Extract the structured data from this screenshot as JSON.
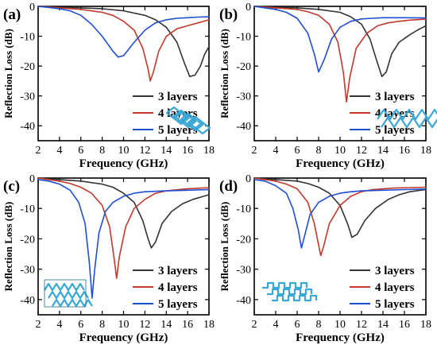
{
  "chart_data": [
    {
      "type": "line",
      "panel_label": "(a)",
      "xlabel": "Frequency (GHz)",
      "ylabel": "Reflection Loss (dB)",
      "xlim": [
        2,
        18
      ],
      "ylim": [
        -45,
        0
      ],
      "xticks": [
        2,
        4,
        6,
        8,
        10,
        12,
        14,
        16,
        18
      ],
      "yticks": [
        0,
        -10,
        -20,
        -30,
        -40
      ],
      "legend_position": "bottom-right",
      "series": [
        {
          "name": "3 layers",
          "color": "#333333",
          "points": [
            [
              2,
              0
            ],
            [
              4,
              -0.3
            ],
            [
              6,
              -0.5
            ],
            [
              8,
              -0.8
            ],
            [
              10,
              -1.5
            ],
            [
              12,
              -3
            ],
            [
              13,
              -4.5
            ],
            [
              14,
              -7
            ],
            [
              15,
              -12
            ],
            [
              15.7,
              -19
            ],
            [
              16.2,
              -23.5
            ],
            [
              16.7,
              -23
            ],
            [
              17.2,
              -20
            ],
            [
              17.6,
              -16
            ],
            [
              18,
              -13.5
            ]
          ]
        },
        {
          "name": "4 layers",
          "color": "#c0392b",
          "points": [
            [
              2,
              0
            ],
            [
              4,
              -0.5
            ],
            [
              6,
              -1
            ],
            [
              8,
              -2
            ],
            [
              9,
              -3
            ],
            [
              10,
              -5
            ],
            [
              11,
              -8
            ],
            [
              11.8,
              -14
            ],
            [
              12.3,
              -21
            ],
            [
              12.5,
              -25
            ],
            [
              12.8,
              -22
            ],
            [
              13.3,
              -15
            ],
            [
              14,
              -10
            ],
            [
              15,
              -7.5
            ],
            [
              16,
              -6.5
            ],
            [
              17,
              -5.5
            ],
            [
              18,
              -4.5
            ]
          ]
        },
        {
          "name": "5 layers",
          "color": "#1f4fd1",
          "points": [
            [
              2,
              0
            ],
            [
              4,
              -0.8
            ],
            [
              5,
              -1.5
            ],
            [
              6,
              -3
            ],
            [
              7,
              -6
            ],
            [
              8,
              -10
            ],
            [
              9,
              -15
            ],
            [
              9.5,
              -17
            ],
            [
              10,
              -16.5
            ],
            [
              11,
              -12
            ],
            [
              12,
              -8
            ],
            [
              13,
              -5.5
            ],
            [
              14,
              -4.5
            ],
            [
              15,
              -4
            ],
            [
              16,
              -3.8
            ],
            [
              17,
              -3.6
            ],
            [
              18,
              -3.5
            ]
          ]
        }
      ]
    },
    {
      "type": "line",
      "panel_label": "(b)",
      "xlabel": "Frequency (GHz)",
      "ylabel": "Reflection Loss (dB)",
      "xlim": [
        2,
        18
      ],
      "ylim": [
        -45,
        0
      ],
      "xticks": [
        2,
        4,
        6,
        8,
        10,
        12,
        14,
        16,
        18
      ],
      "yticks": [
        0,
        -10,
        -20,
        -30,
        -40
      ],
      "legend_position": "bottom-right",
      "series": [
        {
          "name": "3 layers",
          "color": "#333333",
          "points": [
            [
              2,
              0
            ],
            [
              4,
              -0.3
            ],
            [
              6,
              -0.5
            ],
            [
              8,
              -1
            ],
            [
              10,
              -2
            ],
            [
              11,
              -3.5
            ],
            [
              12,
              -6
            ],
            [
              12.8,
              -11
            ],
            [
              13.4,
              -18
            ],
            [
              13.9,
              -23.5
            ],
            [
              14.3,
              -22
            ],
            [
              14.8,
              -16
            ],
            [
              15.5,
              -12
            ],
            [
              16.5,
              -9.5
            ],
            [
              17.2,
              -8
            ],
            [
              18,
              -6.5
            ]
          ]
        },
        {
          "name": "4 layers",
          "color": "#c0392b",
          "points": [
            [
              2,
              0
            ],
            [
              4,
              -0.5
            ],
            [
              6,
              -1
            ],
            [
              7,
              -1.8
            ],
            [
              8,
              -3
            ],
            [
              9,
              -6
            ],
            [
              9.8,
              -12
            ],
            [
              10.3,
              -22
            ],
            [
              10.6,
              -32
            ],
            [
              10.9,
              -24
            ],
            [
              11.5,
              -14
            ],
            [
              12.5,
              -9
            ],
            [
              13.5,
              -6.5
            ],
            [
              14.5,
              -5.5
            ],
            [
              15.5,
              -5
            ],
            [
              16.5,
              -4.6
            ],
            [
              18,
              -4.3
            ]
          ]
        },
        {
          "name": "5 layers",
          "color": "#1f4fd1",
          "points": [
            [
              2,
              0
            ],
            [
              3,
              -0.5
            ],
            [
              4,
              -1
            ],
            [
              5,
              -2
            ],
            [
              6,
              -4
            ],
            [
              7,
              -9
            ],
            [
              7.6,
              -16
            ],
            [
              8,
              -22
            ],
            [
              8.5,
              -18
            ],
            [
              9.2,
              -11
            ],
            [
              10,
              -7
            ],
            [
              11,
              -5
            ],
            [
              12,
              -4.2
            ],
            [
              13,
              -4
            ],
            [
              14,
              -3.8
            ],
            [
              16,
              -3.8
            ],
            [
              18,
              -3.9
            ]
          ]
        }
      ]
    },
    {
      "type": "line",
      "panel_label": "(c)",
      "xlabel": "Frequency (GHz)",
      "ylabel": "Reflection Loss (dB)",
      "xlim": [
        2,
        18
      ],
      "ylim": [
        -45,
        0
      ],
      "xticks": [
        2,
        4,
        6,
        8,
        10,
        12,
        14,
        16,
        18
      ],
      "yticks": [
        0,
        -10,
        -20,
        -30,
        -40
      ],
      "legend_position": "bottom-right",
      "series": [
        {
          "name": "3 layers",
          "color": "#333333",
          "points": [
            [
              2,
              0
            ],
            [
              4,
              -0.5
            ],
            [
              6,
              -1
            ],
            [
              8,
              -2
            ],
            [
              9,
              -3
            ],
            [
              10,
              -5
            ],
            [
              11,
              -8
            ],
            [
              11.8,
              -14
            ],
            [
              12.3,
              -20
            ],
            [
              12.6,
              -23
            ],
            [
              13,
              -21
            ],
            [
              13.6,
              -15
            ],
            [
              14.5,
              -11
            ],
            [
              15.5,
              -8.5
            ],
            [
              16.5,
              -7
            ],
            [
              17.5,
              -6
            ],
            [
              18,
              -5.5
            ]
          ]
        },
        {
          "name": "4 layers",
          "color": "#c0392b",
          "points": [
            [
              2,
              0
            ],
            [
              3,
              -0.5
            ],
            [
              4,
              -1
            ],
            [
              5,
              -1.8
            ],
            [
              6,
              -3
            ],
            [
              7,
              -5
            ],
            [
              8,
              -9
            ],
            [
              8.7,
              -16
            ],
            [
              9.1,
              -26
            ],
            [
              9.35,
              -33
            ],
            [
              9.6,
              -26
            ],
            [
              10.2,
              -16
            ],
            [
              11,
              -10
            ],
            [
              12,
              -7
            ],
            [
              13,
              -5
            ],
            [
              14,
              -4.2
            ],
            [
              16,
              -3.5
            ],
            [
              18,
              -3.2
            ]
          ]
        },
        {
          "name": "5 layers",
          "color": "#1f4fd1",
          "points": [
            [
              2,
              -0.5
            ],
            [
              3,
              -1
            ],
            [
              4,
              -2
            ],
            [
              5,
              -4
            ],
            [
              5.8,
              -8
            ],
            [
              6.4,
              -15
            ],
            [
              6.8,
              -28
            ],
            [
              7.05,
              -39.5
            ],
            [
              7.3,
              -30
            ],
            [
              7.7,
              -18
            ],
            [
              8.3,
              -11
            ],
            [
              9,
              -8
            ],
            [
              10,
              -6
            ],
            [
              11,
              -5
            ],
            [
              12,
              -4.5
            ],
            [
              14,
              -4.2
            ],
            [
              16,
              -4
            ],
            [
              18,
              -3.8
            ]
          ]
        }
      ]
    },
    {
      "type": "line",
      "panel_label": "(d)",
      "xlabel": "Frequency (GHz)",
      "ylabel": "Reflection Loss (dB)",
      "xlim": [
        2,
        18
      ],
      "ylim": [
        -45,
        0
      ],
      "xticks": [
        2,
        4,
        6,
        8,
        10,
        12,
        14,
        16,
        18
      ],
      "yticks": [
        0,
        -10,
        -20,
        -30,
        -40
      ],
      "legend_position": "bottom-right",
      "series": [
        {
          "name": "3 layers",
          "color": "#333333",
          "points": [
            [
              2,
              0
            ],
            [
              4,
              -0.5
            ],
            [
              6,
              -1
            ],
            [
              7,
              -1.8
            ],
            [
              8,
              -3
            ],
            [
              9,
              -5
            ],
            [
              10,
              -9
            ],
            [
              10.7,
              -15
            ],
            [
              11.1,
              -19.5
            ],
            [
              11.6,
              -18.5
            ],
            [
              12.3,
              -14
            ],
            [
              13.3,
              -10
            ],
            [
              14.5,
              -7
            ],
            [
              15.5,
              -5.5
            ],
            [
              16.5,
              -4.5
            ],
            [
              17.5,
              -4
            ],
            [
              18,
              -3.8
            ]
          ]
        },
        {
          "name": "4 layers",
          "color": "#c0392b",
          "points": [
            [
              2,
              0
            ],
            [
              3,
              -0.5
            ],
            [
              4,
              -1
            ],
            [
              5,
              -2
            ],
            [
              6,
              -3.5
            ],
            [
              7,
              -8
            ],
            [
              7.6,
              -15
            ],
            [
              8,
              -22
            ],
            [
              8.2,
              -25.5
            ],
            [
              8.5,
              -22
            ],
            [
              9,
              -15
            ],
            [
              10,
              -9
            ],
            [
              11,
              -6
            ],
            [
              12,
              -4.5
            ],
            [
              13,
              -3.8
            ],
            [
              15,
              -3.3
            ],
            [
              18,
              -3
            ]
          ]
        },
        {
          "name": "5 layers",
          "color": "#1f4fd1",
          "points": [
            [
              2,
              -0.5
            ],
            [
              3,
              -1
            ],
            [
              4,
              -2.5
            ],
            [
              5,
              -5
            ],
            [
              5.6,
              -10
            ],
            [
              6.1,
              -17
            ],
            [
              6.4,
              -23
            ],
            [
              6.7,
              -19
            ],
            [
              7.2,
              -12
            ],
            [
              8,
              -8
            ],
            [
              9,
              -6
            ],
            [
              10,
              -5
            ],
            [
              11,
              -4.5
            ],
            [
              12,
              -4.2
            ],
            [
              14,
              -4
            ],
            [
              16,
              -3.8
            ],
            [
              18,
              -3.6
            ]
          ]
        }
      ]
    }
  ]
}
